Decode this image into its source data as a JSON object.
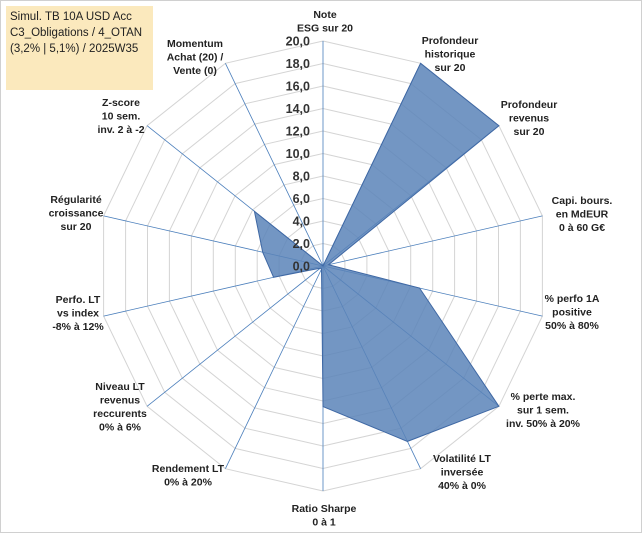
{
  "info_box": {
    "lines": [
      "Simul. TB 10A USD Acc",
      "C3_Obligations / 4_OTAN",
      "(3,2% | 5,1%) / 2025W35"
    ]
  },
  "chart_data": {
    "type": "radar",
    "title": "",
    "r_min": 0,
    "r_max": 20,
    "r_step": 2,
    "tick_labels": [
      "0,0",
      "2,0",
      "4,0",
      "6,0",
      "8,0",
      "10,0",
      "12,0",
      "14,0",
      "16,0",
      "18,0",
      "20,0"
    ],
    "axes": [
      {
        "label": [
          "Note",
          "ESG sur 20"
        ],
        "value": 0
      },
      {
        "label": [
          "Profondeur",
          "historique",
          "sur 20"
        ],
        "value": 20
      },
      {
        "label": [
          "Profondeur",
          "revenus",
          "sur 20"
        ],
        "value": 20
      },
      {
        "label": [
          "Capi. bours.",
          "en MdEUR",
          "0 à 60 G€"
        ],
        "value": 0.5
      },
      {
        "label": [
          "% perfo 1A",
          "positive",
          "50% à 80%"
        ],
        "value": 8.8
      },
      {
        "label": [
          "% perte max.",
          "sur 1 sem.",
          "inv. 50% à 20%"
        ],
        "value": 20
      },
      {
        "label": [
          "Volatilité LT",
          "inversée",
          "40% à 0%"
        ],
        "value": 17.3
      },
      {
        "label": [
          "Ratio Sharpe",
          "0 à 1"
        ],
        "value": 12.5
      },
      {
        "label": [
          "Rendement LT",
          "0% à 20%"
        ],
        "value": 0.3
      },
      {
        "label": [
          "Niveau LT",
          "revenus",
          "reccurents",
          "0% à 6%"
        ],
        "value": 0.3
      },
      {
        "label": [
          "Perfo. LT",
          "vs index",
          "-8% à 12%"
        ],
        "value": 4.5
      },
      {
        "label": [
          "Régularité",
          "croissance",
          "sur 20"
        ],
        "value": 5.5
      },
      {
        "label": [
          "Z-score",
          "10 sem.",
          "inv. 2 à -2"
        ],
        "value": 7.8
      },
      {
        "label": [
          "Momentum",
          "Achat (20) /",
          "Vente (0)"
        ],
        "value": 0
      }
    ],
    "colors": {
      "fill": "#5b84b8",
      "stroke": "#3f68a4",
      "grid": "#d4d4d4",
      "spoke": "#4a7ebb"
    },
    "grid": true,
    "legend": "none"
  }
}
